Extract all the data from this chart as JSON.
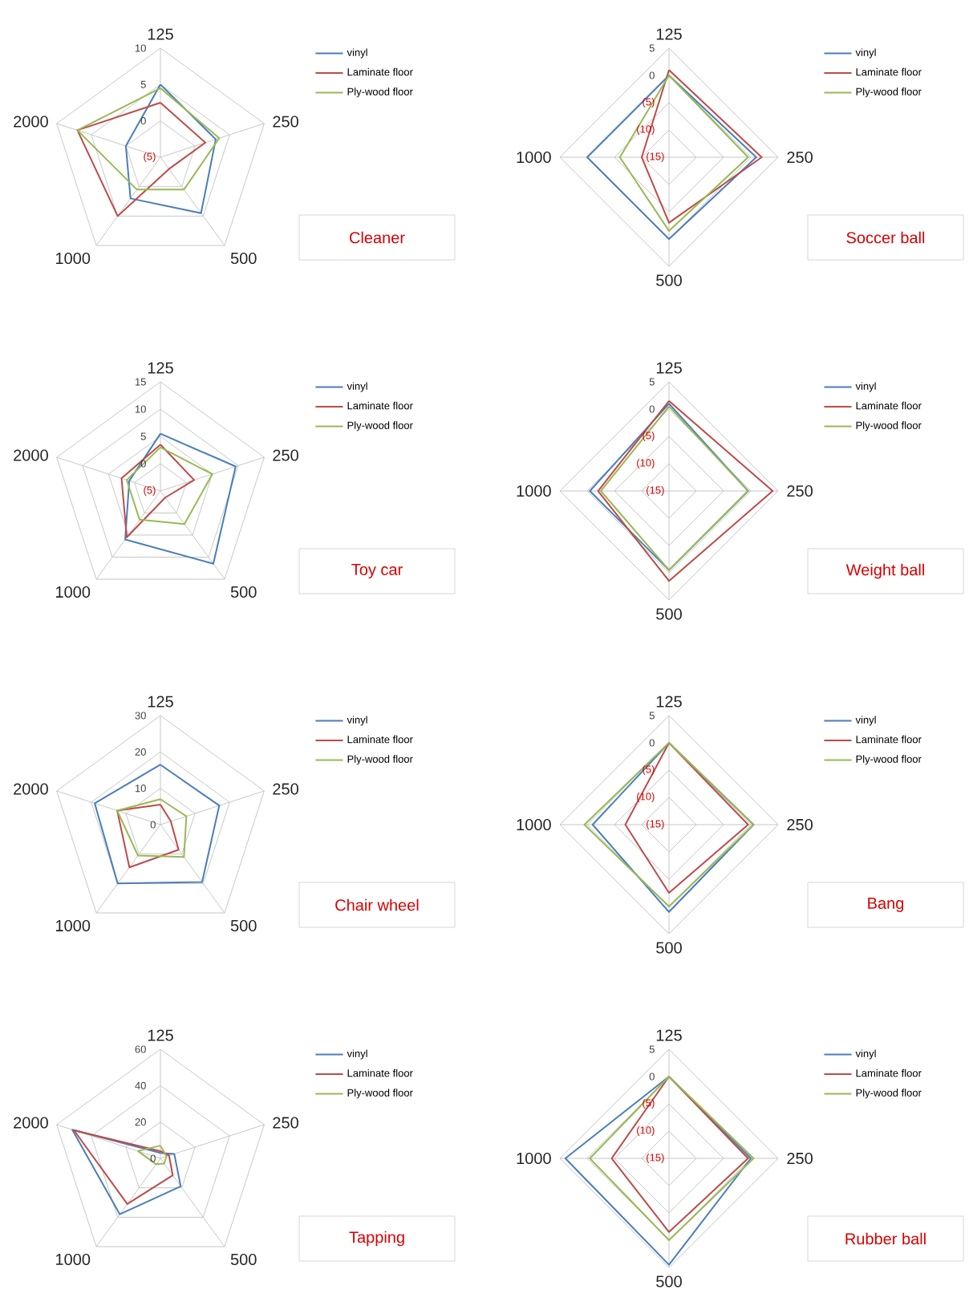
{
  "chart_data": [
    {
      "type": "radar",
      "title": "Cleaner",
      "categories": [
        "125",
        "250",
        "500",
        "1000",
        "2000"
      ],
      "ylim": [
        -5,
        10
      ],
      "yticks": [
        {
          "value": -5,
          "label": "(5)"
        },
        0,
        5,
        10
      ],
      "grid": true,
      "legend": "top right",
      "series": [
        {
          "name": "vinyl",
          "color": "#4a7ebb",
          "values": [
            5,
            3,
            4.5,
            2,
            0
          ]
        },
        {
          "name": "Laminate floor",
          "color": "#be4b48",
          "values": [
            2.5,
            1.5,
            -3,
            5,
            7
          ]
        },
        {
          "name": "Ply-wood floor",
          "color": "#98b954",
          "values": [
            4.5,
            3.5,
            0.5,
            0.5,
            7
          ]
        }
      ]
    },
    {
      "type": "radar",
      "title": "Soccer ball",
      "categories": [
        "125",
        "250",
        "500",
        "1000"
      ],
      "ylim": [
        -15,
        5
      ],
      "yticks": [
        {
          "value": -15,
          "label": "(15)"
        },
        {
          "value": -10,
          "label": "(10)"
        },
        {
          "value": -5,
          "label": "(5)"
        },
        0,
        5
      ],
      "grid": true,
      "legend": "top right",
      "series": [
        {
          "name": "vinyl",
          "color": "#4a7ebb",
          "values": [
            0,
            1,
            0,
            0
          ]
        },
        {
          "name": "Laminate floor",
          "color": "#be4b48",
          "values": [
            1,
            2,
            -3,
            -10
          ]
        },
        {
          "name": "Ply-wood floor",
          "color": "#98b954",
          "values": [
            0,
            -0.5,
            -1.5,
            -6
          ]
        }
      ]
    },
    {
      "type": "radar",
      "title": "Toy car",
      "categories": [
        "125",
        "250",
        "500",
        "1000",
        "2000"
      ],
      "ylim": [
        -5,
        15
      ],
      "yticks": [
        {
          "value": -5,
          "label": "(5)"
        },
        0,
        5,
        10,
        15
      ],
      "grid": true,
      "legend": "top right",
      "series": [
        {
          "name": "vinyl",
          "color": "#4a7ebb",
          "values": [
            5.5,
            9.5,
            11.5,
            6,
            1
          ]
        },
        {
          "name": "Laminate floor",
          "color": "#be4b48",
          "values": [
            3.5,
            1.5,
            -3.5,
            5.5,
            2.5
          ]
        },
        {
          "name": "Ply-wood floor",
          "color": "#98b954",
          "values": [
            3,
            5,
            2.5,
            1.5,
            1.5
          ]
        }
      ]
    },
    {
      "type": "radar",
      "title": "Weight ball",
      "categories": [
        "125",
        "250",
        "500",
        "1000"
      ],
      "ylim": [
        -15,
        5
      ],
      "yticks": [
        {
          "value": -15,
          "label": "(15)"
        },
        {
          "value": -10,
          "label": "(10)"
        },
        {
          "value": -5,
          "label": "(5)"
        },
        0,
        5
      ],
      "grid": true,
      "legend": "top right",
      "series": [
        {
          "name": "vinyl",
          "color": "#4a7ebb",
          "values": [
            1,
            -0.5,
            -0.5,
            -0.5
          ]
        },
        {
          "name": "Laminate floor",
          "color": "#be4b48",
          "values": [
            1.5,
            4,
            1.5,
            -2
          ]
        },
        {
          "name": "Ply-wood floor",
          "color": "#98b954",
          "values": [
            0.5,
            -0.5,
            -0.5,
            -2.5
          ]
        }
      ]
    },
    {
      "type": "radar",
      "title": "Chair wheel",
      "categories": [
        "125",
        "250",
        "500",
        "1000",
        "2000"
      ],
      "ylim": [
        0,
        30
      ],
      "yticks": [
        0,
        10,
        20,
        30
      ],
      "grid": true,
      "legend": "top right",
      "series": [
        {
          "name": "vinyl",
          "color": "#4a7ebb",
          "values": [
            16.5,
            17,
            19.5,
            20,
            19
          ]
        },
        {
          "name": "Laminate floor",
          "color": "#be4b48",
          "values": [
            5.5,
            3,
            8.5,
            14.5,
            12.5
          ]
        },
        {
          "name": "Ply-wood floor",
          "color": "#98b954",
          "values": [
            7,
            7.5,
            11,
            10.5,
            12.5
          ]
        }
      ]
    },
    {
      "type": "radar",
      "title": "Bang",
      "categories": [
        "125",
        "250",
        "500",
        "1000"
      ],
      "ylim": [
        -15,
        5
      ],
      "yticks": [
        {
          "value": -15,
          "label": "(15)"
        },
        {
          "value": -10,
          "label": "(10)"
        },
        {
          "value": -5,
          "label": "(5)"
        },
        0,
        5
      ],
      "grid": true,
      "legend": "top right",
      "series": [
        {
          "name": "vinyl",
          "color": "#4a7ebb",
          "values": [
            0,
            0.5,
            1,
            -1
          ]
        },
        {
          "name": "Laminate floor",
          "color": "#be4b48",
          "values": [
            0,
            -0.5,
            -2.5,
            -7
          ]
        },
        {
          "name": "Ply-wood floor",
          "color": "#98b954",
          "values": [
            0,
            0.5,
            0,
            0.5
          ]
        }
      ]
    },
    {
      "type": "radar",
      "title": "Tapping",
      "categories": [
        "125",
        "250",
        "500",
        "1000",
        "2000"
      ],
      "ylim": [
        0,
        60
      ],
      "yticks": [
        0,
        20,
        40,
        60
      ],
      "grid": true,
      "legend": "top right",
      "series": [
        {
          "name": "vinyl",
          "color": "#4a7ebb",
          "values": [
            3,
            8,
            19,
            38,
            51
          ]
        },
        {
          "name": "Laminate floor",
          "color": "#be4b48",
          "values": [
            4,
            5,
            11.5,
            31,
            50
          ]
        },
        {
          "name": "Ply-wood floor",
          "color": "#98b954",
          "values": [
            7,
            3.5,
            3.5,
            4,
            13
          ]
        }
      ]
    },
    {
      "type": "radar",
      "title": "Rubber ball",
      "categories": [
        "125",
        "250",
        "500",
        "1000"
      ],
      "ylim": [
        -15,
        5
      ],
      "yticks": [
        {
          "value": -15,
          "label": "(15)"
        },
        {
          "value": -10,
          "label": "(10)"
        },
        {
          "value": -5,
          "label": "(5)"
        },
        0,
        5
      ],
      "grid": true,
      "legend": "top right",
      "series": [
        {
          "name": "vinyl",
          "color": "#4a7ebb",
          "values": [
            0,
            0,
            4.5,
            4
          ]
        },
        {
          "name": "Laminate floor",
          "color": "#be4b48",
          "values": [
            0,
            -0.5,
            -1.5,
            -4.5
          ]
        },
        {
          "name": "Ply-wood floor",
          "color": "#98b954",
          "values": [
            0,
            0.5,
            0,
            -0.5
          ]
        }
      ]
    }
  ]
}
